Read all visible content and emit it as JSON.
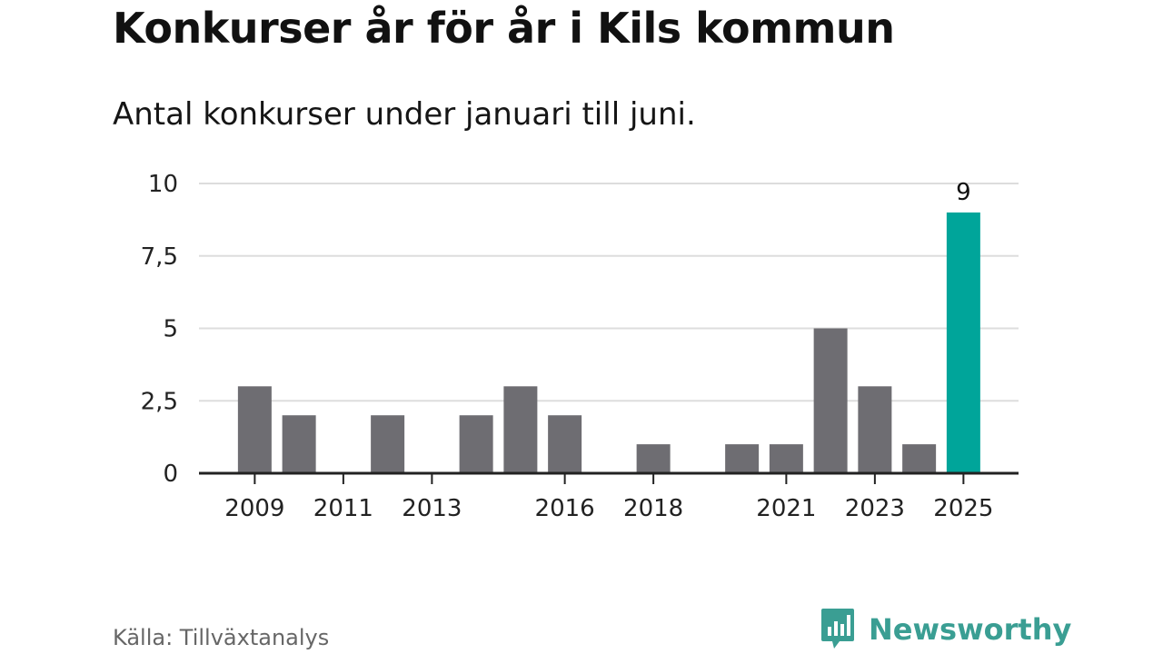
{
  "header": {
    "title": "Konkurser år för år i Kils kommun",
    "subtitle": "Antal konkurser under januari till juni."
  },
  "footer": {
    "source": "Källa: Tillväxtanalys",
    "brand": "Newsworthy"
  },
  "colors": {
    "bar": "#6e6d72",
    "highlight": "#00a59a",
    "brand": "#3a9e93",
    "grid": "#dddddd"
  },
  "icons": {
    "brand_logo": "newsworthy-bars-icon"
  },
  "chart_data": {
    "type": "bar",
    "title": "Konkurser år för år i Kils kommun",
    "subtitle": "Antal konkurser under januari till juni.",
    "categories": [
      "2009",
      "2010",
      "2011",
      "2012",
      "2013",
      "2014",
      "2015",
      "2016",
      "2017",
      "2018",
      "2019",
      "2020",
      "2021",
      "2022",
      "2023",
      "2024",
      "2025"
    ],
    "values": [
      3,
      2,
      0,
      2,
      0,
      2,
      3,
      2,
      0,
      1,
      0,
      1,
      1,
      5,
      3,
      1,
      9
    ],
    "x_tick_labels": [
      "2009",
      "2011",
      "2013",
      "2016",
      "2018",
      "2021",
      "2023",
      "2025"
    ],
    "y_ticks": [
      0,
      2.5,
      5,
      7.5,
      10
    ],
    "y_tick_labels": [
      "0",
      "2,5",
      "5",
      "7,5",
      "10"
    ],
    "ylim": [
      0,
      10
    ],
    "highlight_category": "2025",
    "data_labels": [
      {
        "category": "2025",
        "text": "9"
      }
    ],
    "grid": true,
    "legend": "none"
  }
}
